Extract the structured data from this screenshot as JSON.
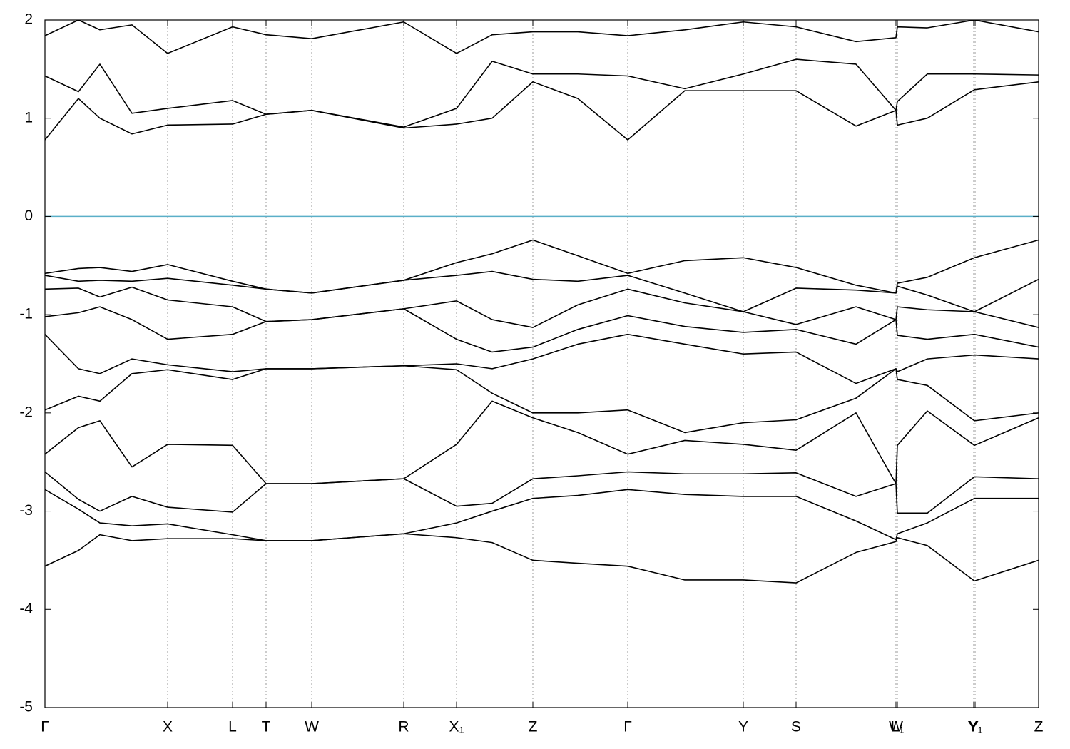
{
  "chart_data": {
    "type": "line",
    "x": [
      0,
      0.47,
      0.77,
      1.22,
      1.72,
      2.63,
      3.1,
      3.74,
      5.03,
      5.77,
      6.27,
      6.84,
      7.47,
      8.17,
      8.97,
      9.79,
      10.53,
      11.37,
      11.93,
      11.95,
      12.37,
      13.03,
      13.93
    ],
    "series": [
      {
        "color": "#000000",
        "values": [
          -3.56,
          -3.4,
          -3.24,
          -3.3,
          -3.28,
          -3.28,
          -3.3,
          -3.3,
          -3.23,
          -3.27,
          -3.32,
          -3.5,
          -3.53,
          -3.56,
          -3.7,
          -3.7,
          -3.73,
          -3.42,
          -3.31,
          -3.27,
          -3.35,
          -3.71,
          -3.5
        ]
      },
      {
        "color": "#000000",
        "values": [
          -2.78,
          -2.98,
          -3.12,
          -3.15,
          -3.13,
          -3.24,
          -3.3,
          -3.3,
          -3.23,
          -3.12,
          -3.0,
          -2.87,
          -2.84,
          -2.78,
          -2.83,
          -2.85,
          -2.85,
          -3.1,
          -3.29,
          -3.23,
          -3.12,
          -2.87,
          -2.87
        ]
      },
      {
        "color": "#000000",
        "values": [
          -2.6,
          -2.88,
          -3.0,
          -2.85,
          -2.96,
          -3.01,
          -2.72,
          -2.72,
          -2.67,
          -2.95,
          -2.92,
          -2.67,
          -2.64,
          -2.6,
          -2.62,
          -2.62,
          -2.61,
          -2.85,
          -2.72,
          -3.02,
          -3.02,
          -2.65,
          -2.67
        ]
      },
      {
        "color": "#000000",
        "values": [
          -2.42,
          -2.15,
          -2.08,
          -2.55,
          -2.32,
          -2.33,
          -2.72,
          -2.72,
          -2.67,
          -2.32,
          -1.88,
          -2.05,
          -2.2,
          -2.42,
          -2.28,
          -2.32,
          -2.38,
          -2.0,
          -2.72,
          -2.33,
          -1.98,
          -2.33,
          -2.05
        ]
      },
      {
        "color": "#000000",
        "values": [
          -1.97,
          -1.83,
          -1.88,
          -1.6,
          -1.56,
          -1.66,
          -1.55,
          -1.55,
          -1.52,
          -1.56,
          -1.8,
          -2.0,
          -2.0,
          -1.97,
          -2.2,
          -2.1,
          -2.07,
          -1.85,
          -1.55,
          -1.66,
          -1.72,
          -2.08,
          -2.0
        ]
      },
      {
        "color": "#000000",
        "values": [
          -1.2,
          -1.55,
          -1.6,
          -1.45,
          -1.51,
          -1.58,
          -1.55,
          -1.55,
          -1.52,
          -1.5,
          -1.55,
          -1.45,
          -1.3,
          -1.2,
          -1.3,
          -1.4,
          -1.38,
          -1.7,
          -1.55,
          -1.58,
          -1.45,
          -1.41,
          -1.45
        ]
      },
      {
        "color": "#000000",
        "values": [
          -1.02,
          -0.98,
          -0.92,
          -1.05,
          -1.25,
          -1.2,
          -1.07,
          -1.05,
          -0.94,
          -1.25,
          -1.38,
          -1.33,
          -1.15,
          -1.01,
          -1.12,
          -1.18,
          -1.15,
          -1.3,
          -1.05,
          -1.21,
          -1.25,
          -1.2,
          -1.33
        ]
      },
      {
        "color": "#000000",
        "values": [
          -0.74,
          -0.73,
          -0.82,
          -0.72,
          -0.85,
          -0.92,
          -1.07,
          -1.05,
          -0.94,
          -0.86,
          -1.05,
          -1.13,
          -0.9,
          -0.74,
          -0.88,
          -0.97,
          -1.1,
          -0.92,
          -1.05,
          -0.92,
          -0.95,
          -0.97,
          -1.13
        ]
      },
      {
        "color": "#000000",
        "values": [
          -0.6,
          -0.66,
          -0.65,
          -0.66,
          -0.63,
          -0.7,
          -0.74,
          -0.78,
          -0.65,
          -0.6,
          -0.56,
          -0.64,
          -0.66,
          -0.6,
          -0.78,
          -0.97,
          -0.73,
          -0.75,
          -0.78,
          -0.71,
          -0.8,
          -0.97,
          -0.64
        ]
      },
      {
        "color": "#000000",
        "values": [
          -0.58,
          -0.53,
          -0.52,
          -0.56,
          -0.49,
          -0.66,
          -0.74,
          -0.78,
          -0.65,
          -0.47,
          -0.38,
          -0.24,
          -0.4,
          -0.58,
          -0.45,
          -0.42,
          -0.52,
          -0.7,
          -0.78,
          -0.68,
          -0.62,
          -0.42,
          -0.24
        ]
      },
      {
        "color": "#000000",
        "values": [
          0.78,
          1.2,
          1.0,
          0.84,
          0.93,
          0.94,
          1.04,
          1.08,
          0.9,
          0.94,
          1.0,
          1.37,
          1.2,
          0.78,
          1.28,
          1.28,
          1.28,
          0.92,
          1.08,
          0.93,
          1.0,
          1.29,
          1.37
        ]
      },
      {
        "color": "#000000",
        "values": [
          1.43,
          1.27,
          1.55,
          1.05,
          1.1,
          1.18,
          1.04,
          1.08,
          0.91,
          1.1,
          1.58,
          1.45,
          1.45,
          1.43,
          1.3,
          1.45,
          1.6,
          1.55,
          1.08,
          1.17,
          1.45,
          1.45,
          1.44
        ]
      },
      {
        "color": "#000000",
        "values": [
          1.84,
          2.0,
          1.9,
          1.95,
          1.66,
          1.93,
          1.85,
          1.81,
          1.98,
          1.66,
          1.85,
          1.88,
          1.88,
          1.84,
          1.9,
          1.98,
          1.93,
          1.78,
          1.82,
          1.93,
          1.92,
          2.0,
          1.88
        ]
      }
    ],
    "xlim": [
      0,
      13.93
    ],
    "xticks": [
      {
        "value": 0,
        "label": "Γ"
      },
      {
        "value": 1.72,
        "label": "X"
      },
      {
        "value": 2.63,
        "label": "L"
      },
      {
        "value": 3.1,
        "label": "T"
      },
      {
        "value": 3.74,
        "label": "W"
      },
      {
        "value": 5.03,
        "label": "R"
      },
      {
        "value": 5.77,
        "label": "X₁"
      },
      {
        "value": 6.84,
        "label": "Z"
      },
      {
        "value": 8.17,
        "label": "Γ"
      },
      {
        "value": 9.79,
        "label": "Y"
      },
      {
        "value": 10.53,
        "label": "S"
      },
      {
        "value": 11.93,
        "label": "W"
      },
      {
        "value": 11.95,
        "label": "L₁"
      },
      {
        "value": 13.02,
        "label": "Y"
      },
      {
        "value": 13.04,
        "label": "Y₁"
      },
      {
        "value": 13.93,
        "label": "Z"
      }
    ],
    "ylim": [
      -5,
      2
    ],
    "yticks": [
      -5,
      -4,
      -3,
      -2,
      -1,
      0,
      1,
      2
    ],
    "grid": "x",
    "reference_line": {
      "value": 0,
      "color": "#5aafc8"
    }
  }
}
